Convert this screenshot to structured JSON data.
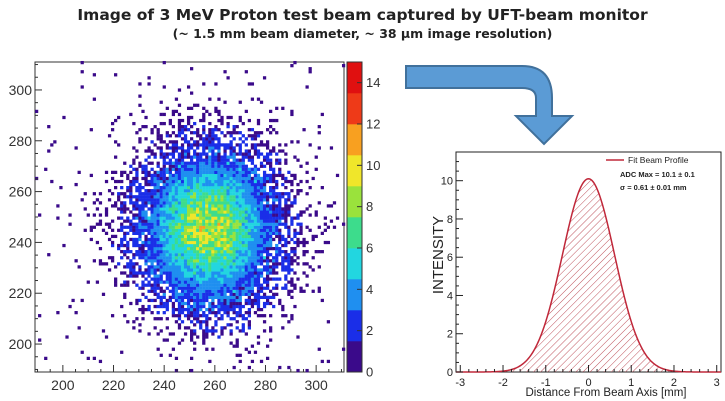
{
  "title": "Image of 3 MeV Proton test beam captured by UFT-beam monitor",
  "subtitle": "(~ 1.5 mm beam diameter, ~ 38 μm image resolution)",
  "chart_data": [
    {
      "type": "heatmap",
      "x_ticks": [
        200,
        220,
        240,
        260,
        280,
        300
      ],
      "y_ticks": [
        200,
        220,
        240,
        260,
        280,
        300
      ],
      "xlim": [
        189,
        311
      ],
      "ylim": [
        189,
        311
      ],
      "center": [
        257,
        245
      ],
      "sigma": [
        15,
        17
      ],
      "peak_value": 14,
      "colorbar_range": [
        0,
        15
      ],
      "colorbar_ticks": [
        0,
        2,
        4,
        6,
        8,
        10,
        12,
        14
      ],
      "colormap": [
        "#3a0a8a",
        "#1a2ee8",
        "#1f8ff0",
        "#22d6e0",
        "#3ddc8c",
        "#9ae23c",
        "#f0e62a",
        "#f8a020",
        "#ee3a18",
        "#e01010"
      ],
      "grid": false
    },
    {
      "type": "area",
      "xlabel": "Distance From Beam Axis [mm]",
      "ylabel": "INTENSITY",
      "xlim": [
        -3.1,
        3.1
      ],
      "ylim": [
        0,
        11.5
      ],
      "x_ticks": [
        -3,
        -2,
        -1,
        0,
        1,
        2,
        3
      ],
      "y_ticks": [
        0,
        2,
        4,
        6,
        8,
        10
      ],
      "series": [
        {
          "name": "Fit Beam Profile",
          "amplitude": 10.1,
          "mean": 0,
          "sigma": 0.61,
          "color": "#c0283a"
        }
      ],
      "annotations": [
        "ADC Max = 10.1 ± 0.1",
        "σ = 0.61 ± 0.01 mm"
      ],
      "legend_position": "top-right",
      "fill": "hatched"
    }
  ],
  "arrow": {
    "color": "#5b9bd5",
    "border": "#41719c"
  }
}
